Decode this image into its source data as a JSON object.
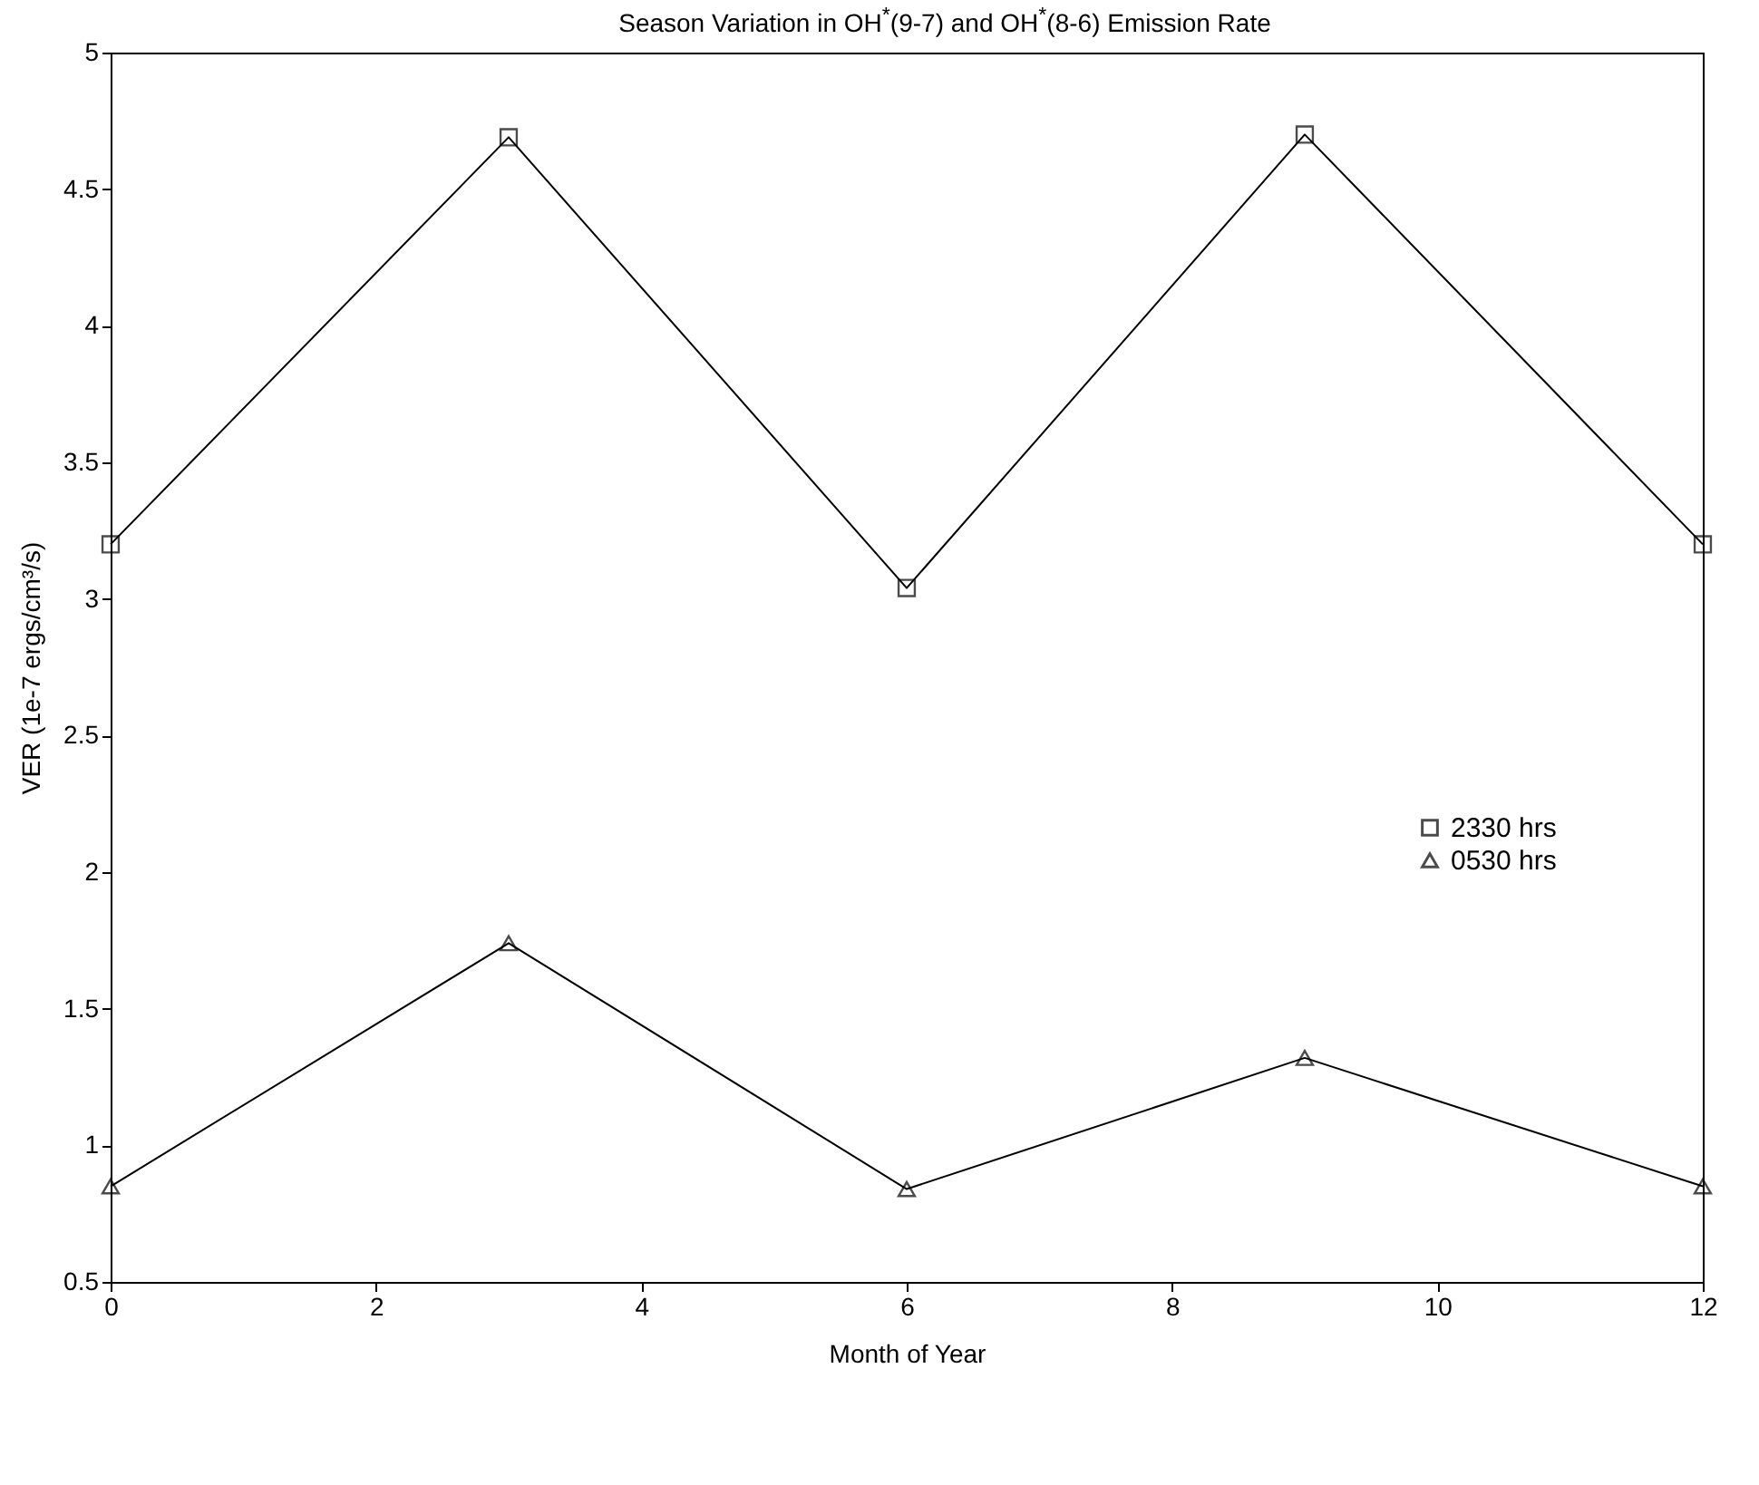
{
  "chart_data": {
    "type": "line",
    "title": "Season Variation in OH$^{*}$(9-7) and OH$^{*}$(8-6) Emission Rate",
    "xlabel": "Month of Year",
    "ylabel": "VER (1e-7 ergs/cm³/s)",
    "x": [
      0,
      3,
      6,
      9,
      12
    ],
    "series": [
      {
        "name": "2330 hrs",
        "color": "#000000",
        "marker": "square",
        "values": [
          3.2,
          4.69,
          3.04,
          4.7,
          3.2
        ]
      },
      {
        "name": "0530 hrs",
        "color": "#000000",
        "marker": "triangle",
        "values": [
          0.85,
          1.74,
          0.84,
          1.32,
          0.85
        ]
      }
    ],
    "xlim": [
      0,
      12
    ],
    "xticks": [
      0,
      2,
      4,
      6,
      8,
      10,
      12
    ],
    "ylim": [
      0.5,
      5
    ],
    "yticks": [
      0.5,
      1,
      1.5,
      2,
      2.5,
      3,
      3.5,
      4,
      4.5,
      5
    ],
    "grid": false,
    "legend": "right",
    "line_style": "solid"
  }
}
